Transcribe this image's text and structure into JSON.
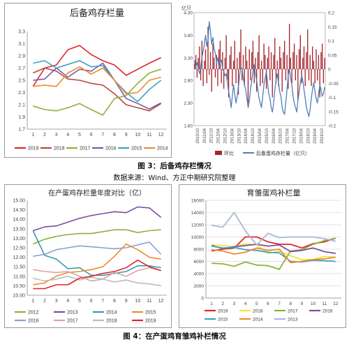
{
  "figure3": {
    "caption": "图 3：后备鸡存栏情况",
    "source": "数据来源：Wind、方正中期研究院整理"
  },
  "figure4": {
    "caption": "图 4：在产蛋鸡育雏鸡补栏情况"
  },
  "chart_data": [
    {
      "id": "c1",
      "type": "line",
      "title": "后备鸡存栏量",
      "xlabel": "",
      "ylabel": "",
      "categories": [
        "1",
        "2",
        "3",
        "4",
        "5",
        "6",
        "7",
        "8",
        "9",
        "10",
        "11",
        "12"
      ],
      "yticks": [
        "1.7",
        "1.9",
        "2.1",
        "2.3",
        "2.5",
        "2.7",
        "2.9",
        "3.1",
        "3.3"
      ],
      "ylim": [
        1.7,
        3.3
      ],
      "grid": false,
      "legend": "bottom",
      "series": [
        {
          "name": "2019",
          "color": "#e0262b",
          "values": [
            2.4,
            2.7,
            2.75,
            3.0,
            3.07,
            2.92,
            2.82,
            2.75,
            2.58,
            2.68,
            2.78,
            2.87
          ]
        },
        {
          "name": "2018",
          "color": "#b8483c",
          "values": [
            2.62,
            2.7,
            2.65,
            2.52,
            2.5,
            2.45,
            2.42,
            2.28,
            2.1,
            2.05,
            2.0,
            2.12
          ]
        },
        {
          "name": "2017",
          "color": "#8bb33a",
          "values": [
            2.08,
            2.02,
            2.0,
            2.05,
            2.12,
            2.02,
            1.93,
            2.2,
            2.25,
            2.45,
            2.62,
            2.68
          ]
        },
        {
          "name": "2016",
          "color": "#7b5aa6",
          "values": [
            2.5,
            2.52,
            2.7,
            2.55,
            2.68,
            2.65,
            2.78,
            2.5,
            2.2,
            2.12,
            2.03,
            2.13
          ]
        },
        {
          "name": "2015",
          "color": "#3ba3c0",
          "values": [
            2.78,
            2.82,
            2.7,
            2.76,
            2.82,
            2.72,
            2.74,
            2.5,
            2.3,
            2.15,
            2.35,
            2.5
          ]
        },
        {
          "name": "2014",
          "color": "#f08a2a",
          "values": [
            2.4,
            2.42,
            2.4,
            2.62,
            2.72,
            2.6,
            2.7,
            2.5,
            2.28,
            2.3,
            2.5,
            2.55
          ]
        }
      ]
    },
    {
      "id": "c2",
      "type": "bar",
      "title": "",
      "left_axis_label": "亿只",
      "yticks_left": [
        "1.80",
        "2.30",
        "2.80",
        "3.30",
        "3.80",
        "4.30"
      ],
      "ylim_left": [
        1.8,
        4.3
      ],
      "yticks_right": [
        "-0.2",
        "-0.15",
        "-0.1",
        "-0.05",
        "0",
        "0.05",
        "0.1",
        "0.15",
        "0.2"
      ],
      "ylim_right": [
        -0.2,
        0.2
      ],
      "xticks": [
        "2010/10",
        "2011/04",
        "2011/10",
        "2012/04",
        "2012/10",
        "2013/04",
        "2013/10",
        "2014/04",
        "2014/10",
        "2015/04",
        "2015/10",
        "2016/04",
        "2016/10",
        "2017/04",
        "2017/10",
        "2018/04",
        "2018/10",
        "2019/04",
        "2019/10"
      ],
      "legend": "bottom",
      "series": [
        {
          "name": "环比",
          "kind": "bar",
          "axis": "right",
          "color": "#a5252c",
          "values": [
            0.02,
            0.05,
            -0.03,
            0.04,
            0.08,
            -0.04,
            0.1,
            -0.06,
            0.03,
            0.07,
            -0.05,
            0.15,
            -0.02,
            0.06,
            -0.08,
            0.09,
            0.04,
            -0.03,
            0.05,
            -0.06,
            0.07,
            0.1,
            -0.05,
            0.06,
            -0.07,
            0.04,
            0.12,
            -0.04,
            -0.1,
            0.05,
            0.08,
            -0.06,
            0.03,
            0.1,
            -0.05,
            0.04,
            -0.09,
            0.06,
            0.14,
            -0.04,
            0.05,
            -0.06,
            0.08,
            0.03,
            -0.12,
            0.07,
            -0.04,
            0.06,
            0.1,
            -0.05,
            0.04,
            -0.08,
            0.06,
            0.12,
            -0.06,
            0.03,
            -0.05,
            0.09,
            0.05,
            -0.07,
            0.04,
            0.08,
            -0.04,
            0.06,
            -0.1,
            0.05,
            0.11,
            -0.05,
            0.03,
            -0.06,
            0.08,
            0.04,
            -0.08,
            0.06,
            0.1,
            -0.04,
            0.05,
            -0.07,
            0.16,
            0.04,
            -0.05,
            0.06,
            0.09,
            -0.04,
            0.05,
            -0.11,
            0.07,
            0.12,
            -0.05,
            0.04,
            0.08,
            -0.06,
            0.06,
            0.14,
            -0.04,
            0.05,
            -0.06,
            0.08,
            0.03,
            -0.05,
            0.07,
            -0.04,
            0.05,
            -0.1,
            0.06,
            0.09,
            -0.05,
            0.04
          ]
        },
        {
          "name": "后备蛋鸡存栏量（亿只）",
          "kind": "line",
          "axis": "left",
          "color": "#4f7fb8",
          "values": [
            3.25,
            3.1,
            3.2,
            3.05,
            2.95,
            3.1,
            3.3,
            3.45,
            3.6,
            3.8,
            3.55,
            3.7,
            4.1,
            3.9,
            3.6,
            3.75,
            3.5,
            3.4,
            3.2,
            3.3,
            3.1,
            3.2,
            3.25,
            3.05,
            3.0,
            2.9,
            2.95,
            2.75,
            2.55,
            2.4,
            2.2,
            2.45,
            2.7,
            2.5,
            2.3,
            2.45,
            2.65,
            2.9,
            3.1,
            3.05,
            2.85,
            2.7,
            2.6,
            2.4,
            2.2,
            2.35,
            2.6,
            2.8,
            3.0,
            3.15,
            2.95,
            2.8,
            2.6,
            2.4,
            2.3,
            2.2,
            2.45,
            2.7,
            2.85,
            3.0,
            2.75,
            2.5,
            2.4,
            2.2,
            2.1,
            2.3,
            2.6,
            2.8,
            2.95,
            2.75,
            2.55,
            2.45,
            2.2,
            2.1,
            2.05,
            2.3,
            2.6,
            2.9,
            3.05,
            2.85,
            2.7,
            2.45,
            2.3,
            2.2,
            2.1,
            2.35,
            2.55,
            2.75,
            2.9,
            2.8,
            2.6,
            2.4,
            2.2,
            2.1,
            2.0,
            2.15,
            2.4,
            2.6,
            2.75,
            2.55,
            2.4,
            2.3,
            2.5,
            2.7,
            2.6,
            2.45,
            2.5,
            2.65
          ]
        }
      ]
    },
    {
      "id": "c3",
      "type": "line",
      "title": "在产蛋鸡存栏量年度对比（亿）",
      "xlabel": "",
      "ylabel": "",
      "categories": [
        "1",
        "2",
        "3",
        "4",
        "5",
        "6",
        "7",
        "8",
        "9",
        "10",
        "11",
        "12"
      ],
      "yticks": [
        "10.00",
        "10.50",
        "11.00",
        "11.50",
        "12.00",
        "12.50",
        "13.00",
        "13.50",
        "14.00",
        "14.50",
        "15.00"
      ],
      "ylim": [
        10.0,
        15.0
      ],
      "grid": false,
      "legend": "bottom",
      "series": [
        {
          "name": "2012",
          "color": "#8bb33a",
          "values": [
            12.7,
            12.95,
            13.1,
            13.2,
            13.25,
            13.25,
            13.35,
            13.45,
            13.45,
            13.3,
            13.4,
            13.45
          ]
        },
        {
          "name": "2013",
          "color": "#7b4fa0",
          "values": [
            13.4,
            13.6,
            13.65,
            13.85,
            14.05,
            14.2,
            14.3,
            14.4,
            14.35,
            14.65,
            14.6,
            14.1
          ]
        },
        {
          "name": "2014",
          "color": "#3b9ab5",
          "values": [
            13.4,
            12.1,
            11.9,
            11.4,
            11.45,
            11.05,
            11.05,
            11.15,
            11.25,
            11.55,
            11.55,
            11.45
          ]
        },
        {
          "name": "2015",
          "color": "#f08a2a",
          "values": [
            10.55,
            10.65,
            11.0,
            11.2,
            11.25,
            11.35,
            11.5,
            12.05,
            12.7,
            12.4,
            12.0,
            11.9
          ]
        },
        {
          "name": "2016",
          "color": "#8aa2c8",
          "values": [
            12.05,
            12.15,
            12.4,
            12.5,
            12.6,
            12.55,
            12.5,
            12.45,
            12.5,
            12.65,
            12.8,
            12.15
          ]
        },
        {
          "name": "2017",
          "color": "#d9a3a3",
          "values": [
            11.35,
            11.25,
            11.2,
            11.25,
            11.0,
            10.75,
            10.85,
            11.2,
            11.0,
            11.3,
            11.45,
            11.3
          ]
        },
        {
          "name": "2018",
          "color": "#bcbcbc",
          "values": [
            10.9,
            10.75,
            10.85,
            11.0,
            10.8,
            10.95,
            10.85,
            10.7,
            10.8,
            10.65,
            10.6,
            10.5
          ]
        },
        {
          "name": "2019",
          "color": "#e0262b",
          "values": [
            10.35,
            10.35,
            10.55,
            10.55,
            10.9,
            11.0,
            11.15,
            11.25,
            11.45,
            11.85,
            11.5,
            11.3
          ]
        }
      ]
    },
    {
      "id": "c4",
      "type": "line",
      "title": "育雏蛋鸡补栏量",
      "xlabel": "",
      "ylabel": "",
      "categories": [
        "1",
        "2",
        "3",
        "4",
        "5",
        "6",
        "7",
        "8",
        "9",
        "10",
        "11",
        "12"
      ],
      "yticks": [
        "0",
        "2000",
        "4000",
        "6000",
        "8000",
        "10000",
        "12000",
        "14000",
        "16000"
      ],
      "ylim": [
        0,
        16000
      ],
      "grid": true,
      "legend": "bottom",
      "series": [
        {
          "name": "2019",
          "color": "#e0262b",
          "values": [
            7700,
            8000,
            8200,
            10000,
            10000,
            9200,
            8800,
            8800,
            8200,
            8900,
            9200,
            9800
          ]
        },
        {
          "name": "2018",
          "color": "#f2e23b",
          "values": [
            8700,
            8600,
            8400,
            8900,
            8700,
            7300,
            7700,
            6900,
            6300,
            6300,
            6800,
            6700
          ]
        },
        {
          "name": "2017",
          "color": "#8bb33a",
          "values": [
            5700,
            5600,
            5200,
            5900,
            5400,
            5300,
            4700,
            7700,
            7900,
            8800,
            9400,
            9800
          ]
        },
        {
          "name": "2016",
          "color": "#7b4fa0",
          "values": [
            8600,
            8100,
            8400,
            8600,
            8800,
            8500,
            8700,
            7600,
            7800,
            8200,
            7600,
            7300
          ]
        },
        {
          "name": "2015",
          "color": "#3ba3c0",
          "values": [
            8500,
            8200,
            8300,
            7900,
            7800,
            7500,
            7400,
            6000,
            5900,
            6200,
            6100,
            6000
          ]
        },
        {
          "name": "2014",
          "color": "#f08a2a",
          "values": [
            7900,
            7700,
            7200,
            7500,
            8200,
            7800,
            8000,
            5800,
            6000,
            6300,
            6400,
            6700
          ]
        },
        {
          "name": "2013",
          "color": "#a8b8d8",
          "values": [
            11900,
            11600,
            14000,
            11000,
            8700,
            10600,
            9900,
            10000,
            10000,
            10000,
            9700,
            9300
          ]
        }
      ]
    }
  ]
}
